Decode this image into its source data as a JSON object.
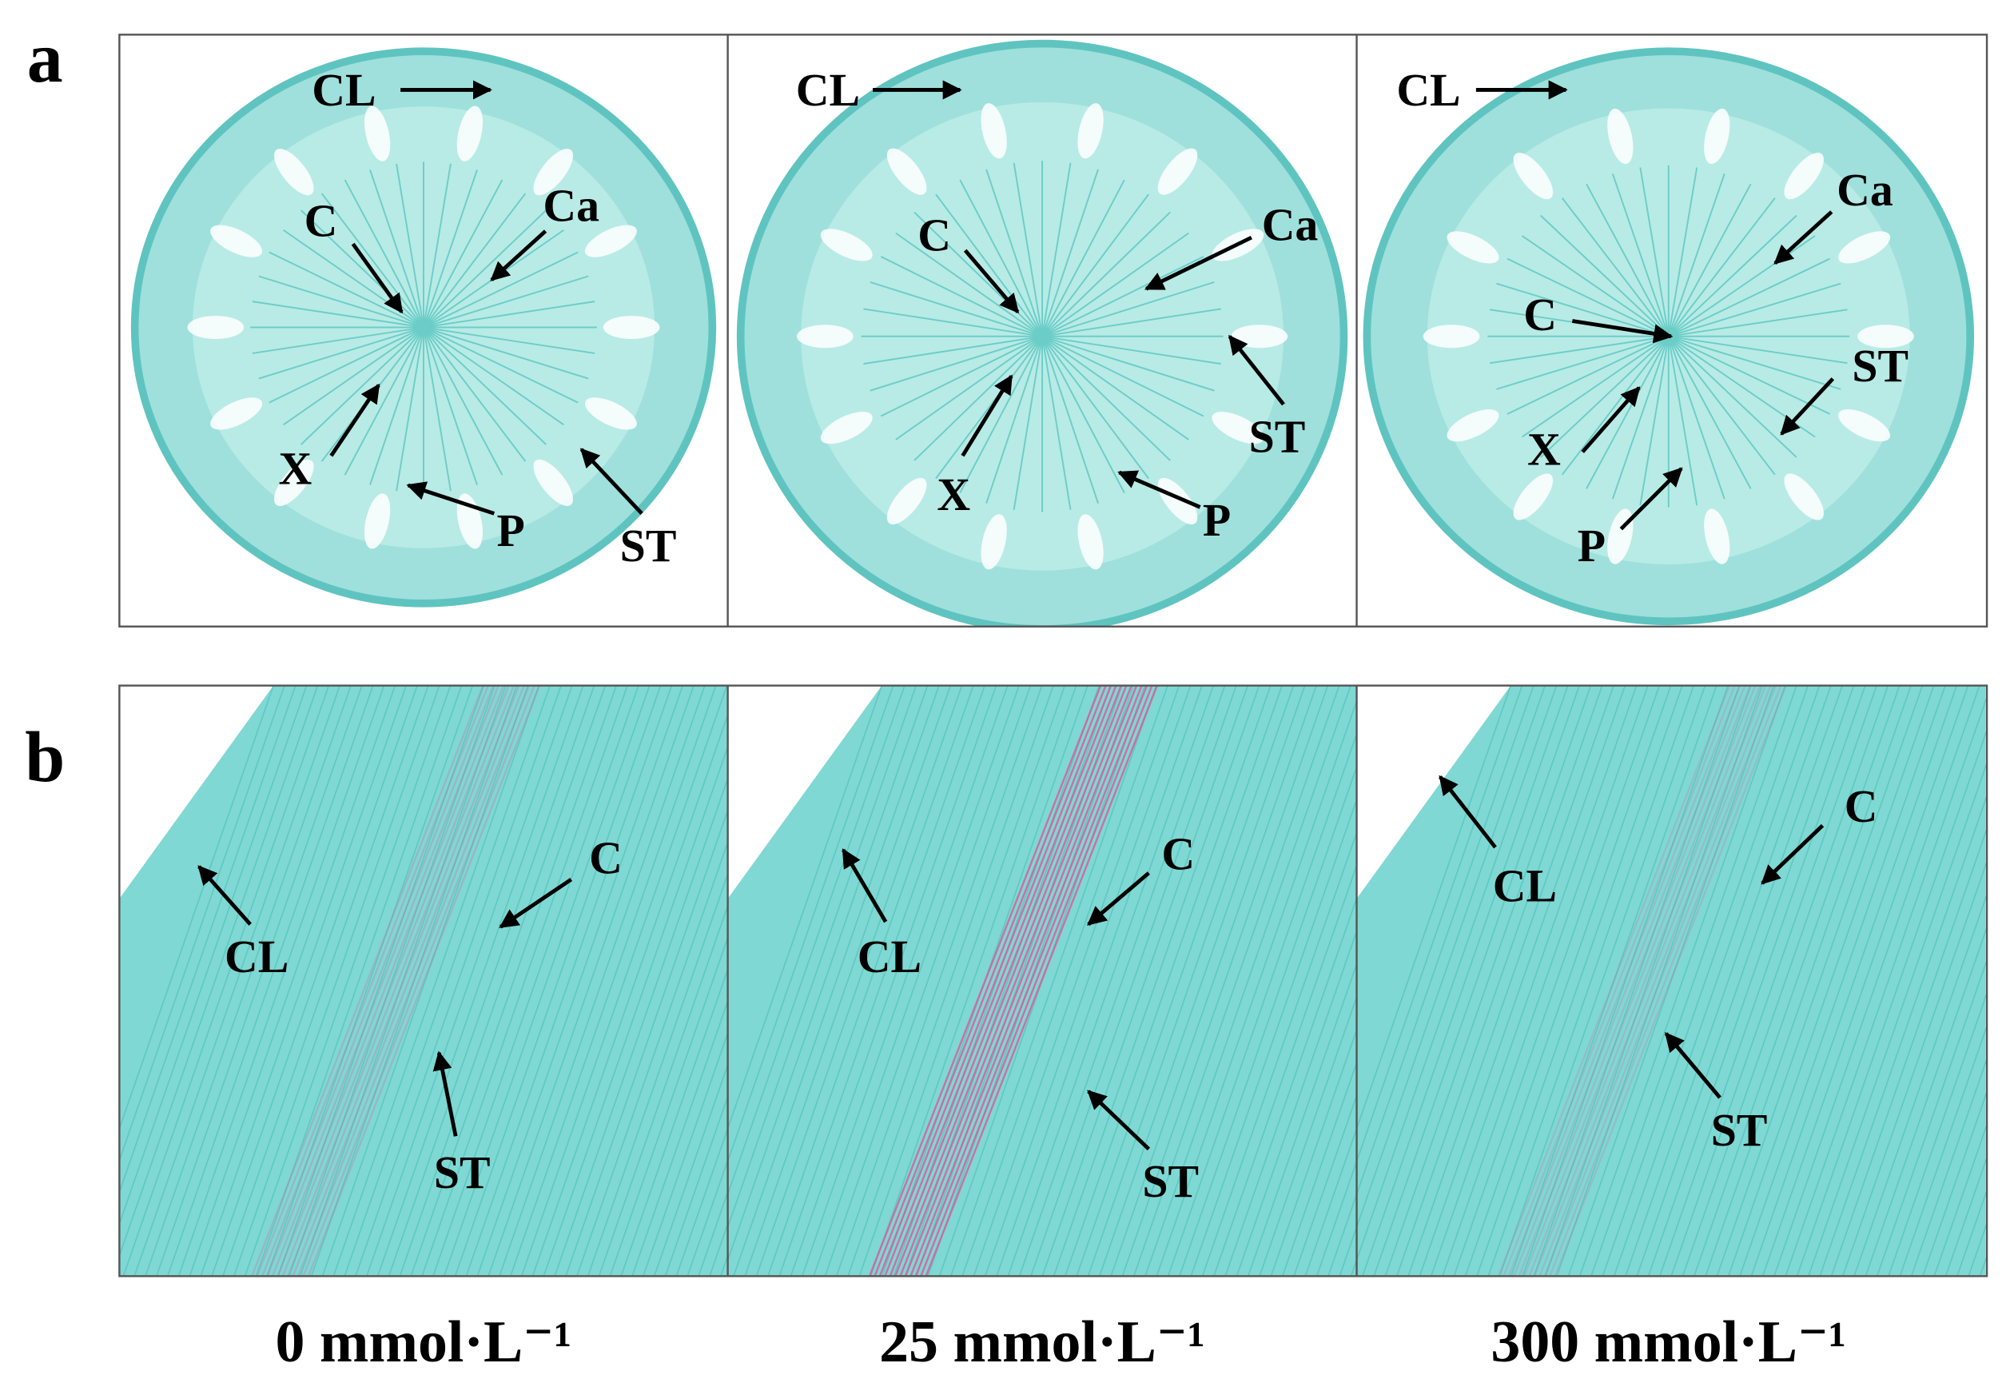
{
  "rows": [
    {
      "label": "a",
      "images": [
        {
          "annotations": [
            "CL",
            "C",
            "Ca",
            "X",
            "P",
            "ST"
          ]
        },
        {
          "annotations": [
            "CL",
            "C",
            "Ca",
            "ST",
            "X",
            "P"
          ]
        },
        {
          "annotations": [
            "CL",
            "Ca",
            "C",
            "ST",
            "X",
            "P"
          ]
        }
      ]
    },
    {
      "label": "b",
      "images": [
        {
          "annotations": [
            "C",
            "CL",
            "ST"
          ]
        },
        {
          "annotations": [
            "C",
            "CL",
            "ST"
          ]
        },
        {
          "annotations": [
            "CL",
            "C",
            "ST"
          ]
        }
      ]
    }
  ],
  "column_labels": [
    "0 mmol·L⁻¹",
    "25 mmol·L⁻¹",
    "300 mmol·L⁻¹"
  ]
}
